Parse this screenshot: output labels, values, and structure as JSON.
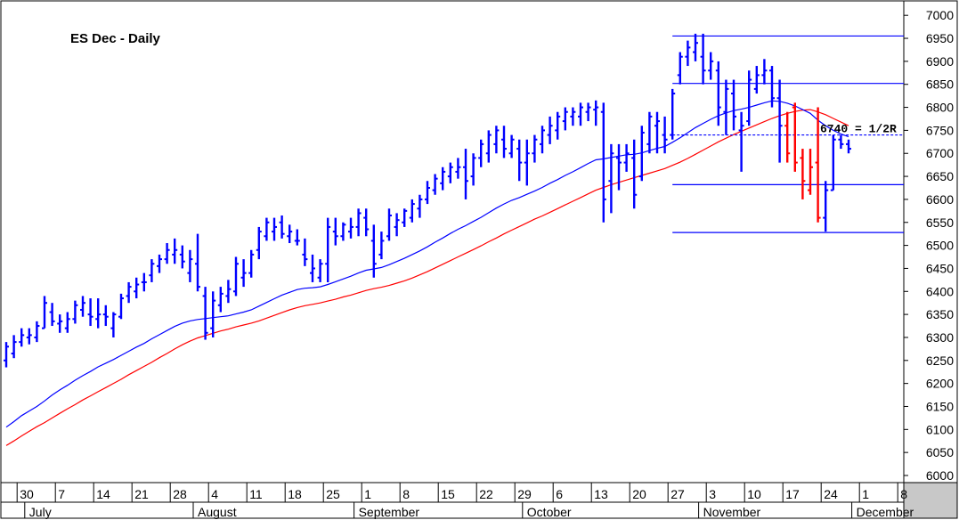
{
  "chart_data": {
    "type": "ohlc",
    "title": "ES Dec - Daily",
    "y_ticks": [
      6000,
      6050,
      6100,
      6150,
      6200,
      6250,
      6300,
      6350,
      6400,
      6450,
      6500,
      6550,
      6600,
      6650,
      6700,
      6750,
      6800,
      6850,
      6900,
      6950,
      7000
    ],
    "ylim": [
      5980,
      7030
    ],
    "date_ticks": [
      {
        "label": "30",
        "index": 2
      },
      {
        "label": "7",
        "index": 7
      },
      {
        "label": "14",
        "index": 12
      },
      {
        "label": "21",
        "index": 17
      },
      {
        "label": "28",
        "index": 22
      },
      {
        "label": "4",
        "index": 27
      },
      {
        "label": "11",
        "index": 32
      },
      {
        "label": "18",
        "index": 37
      },
      {
        "label": "25",
        "index": 42
      },
      {
        "label": "1",
        "index": 47
      },
      {
        "label": "8",
        "index": 52
      },
      {
        "label": "15",
        "index": 57
      },
      {
        "label": "22",
        "index": 62
      },
      {
        "label": "29",
        "index": 67
      },
      {
        "label": "6",
        "index": 72
      },
      {
        "label": "13",
        "index": 77
      },
      {
        "label": "20",
        "index": 82
      },
      {
        "label": "27",
        "index": 87
      },
      {
        "label": "3",
        "index": 92
      },
      {
        "label": "10",
        "index": 97
      },
      {
        "label": "17",
        "index": 102
      },
      {
        "label": "24",
        "index": 107
      },
      {
        "label": "1",
        "index": 112
      },
      {
        "label": "8",
        "index": 117
      }
    ],
    "month_ticks": [
      {
        "label": "July",
        "index": 3
      },
      {
        "label": "August",
        "index": 25
      },
      {
        "label": "September",
        "index": 46
      },
      {
        "label": "October",
        "index": 68
      },
      {
        "label": "November",
        "index": 91
      },
      {
        "label": "December",
        "index": 111
      }
    ],
    "horizontal_lines": [
      {
        "value": 6955,
        "style": "solid",
        "start_index": 87
      },
      {
        "value": 6852,
        "style": "solid",
        "start_index": 87
      },
      {
        "value": 6740,
        "style": "dashed",
        "start_index": 87
      },
      {
        "value": 6632,
        "style": "solid",
        "start_index": 87
      },
      {
        "value": 6528,
        "style": "solid",
        "start_index": 87
      }
    ],
    "annotation": {
      "text": "6740 = 1/2R",
      "value": 6740
    },
    "colors": {
      "up": "#0000ff",
      "down": "#ff0000",
      "ma_fast": "#0000ff",
      "ma_slow": "#ff0000",
      "levels": "#0000ff"
    },
    "bars": [
      [
        6250,
        6290,
        6235,
        6280
      ],
      [
        6265,
        6305,
        6255,
        6290
      ],
      [
        6290,
        6320,
        6280,
        6305
      ],
      [
        6300,
        6320,
        6285,
        6305
      ],
      [
        6300,
        6335,
        6290,
        6325
      ],
      [
        6320,
        6390,
        6320,
        6375
      ],
      [
        6355,
        6375,
        6325,
        6335
      ],
      [
        6330,
        6350,
        6310,
        6335
      ],
      [
        6320,
        6355,
        6310,
        6340
      ],
      [
        6340,
        6380,
        6330,
        6370
      ],
      [
        6360,
        6390,
        6345,
        6375
      ],
      [
        6350,
        6385,
        6325,
        6345
      ],
      [
        6340,
        6385,
        6320,
        6350
      ],
      [
        6350,
        6370,
        6325,
        6345
      ],
      [
        6320,
        6355,
        6300,
        6350
      ],
      [
        6345,
        6395,
        6340,
        6385
      ],
      [
        6390,
        6420,
        6375,
        6410
      ],
      [
        6400,
        6430,
        6385,
        6415
      ],
      [
        6420,
        6440,
        6400,
        6420
      ],
      [
        6435,
        6470,
        6420,
        6460
      ],
      [
        6455,
        6480,
        6440,
        6470
      ],
      [
        6470,
        6505,
        6460,
        6490
      ],
      [
        6480,
        6515,
        6460,
        6490
      ],
      [
        6480,
        6500,
        6450,
        6465
      ],
      [
        6440,
        6490,
        6420,
        6470
      ],
      [
        6460,
        6525,
        6400,
        6410
      ],
      [
        6390,
        6410,
        6295,
        6310
      ],
      [
        6320,
        6400,
        6300,
        6380
      ],
      [
        6370,
        6410,
        6355,
        6395
      ],
      [
        6390,
        6425,
        6375,
        6405
      ],
      [
        6400,
        6475,
        6390,
        6460
      ],
      [
        6430,
        6470,
        6410,
        6440
      ],
      [
        6440,
        6490,
        6430,
        6480
      ],
      [
        6490,
        6540,
        6470,
        6530
      ],
      [
        6520,
        6560,
        6510,
        6550
      ],
      [
        6530,
        6560,
        6510,
        6540
      ],
      [
        6550,
        6565,
        6515,
        6525
      ],
      [
        6520,
        6545,
        6505,
        6530
      ],
      [
        6510,
        6535,
        6500,
        6510
      ],
      [
        6480,
        6515,
        6455,
        6470
      ],
      [
        6440,
        6480,
        6420,
        6450
      ],
      [
        6430,
        6470,
        6420,
        6460
      ],
      [
        6460,
        6560,
        6420,
        6540
      ],
      [
        6530,
        6560,
        6500,
        6520
      ],
      [
        6520,
        6550,
        6510,
        6545
      ],
      [
        6530,
        6560,
        6515,
        6540
      ],
      [
        6540,
        6580,
        6520,
        6570
      ],
      [
        6560,
        6580,
        6520,
        6535
      ],
      [
        6510,
        6545,
        6430,
        6460
      ],
      [
        6480,
        6530,
        6470,
        6510
      ],
      [
        6520,
        6580,
        6510,
        6565
      ],
      [
        6540,
        6570,
        6520,
        6555
      ],
      [
        6550,
        6580,
        6540,
        6575
      ],
      [
        6560,
        6600,
        6550,
        6590
      ],
      [
        6580,
        6610,
        6560,
        6600
      ],
      [
        6600,
        6640,
        6590,
        6625
      ],
      [
        6620,
        6655,
        6610,
        6645
      ],
      [
        6635,
        6670,
        6620,
        6660
      ],
      [
        6650,
        6680,
        6635,
        6670
      ],
      [
        6660,
        6690,
        6645,
        6670
      ],
      [
        6670,
        6710,
        6600,
        6640
      ],
      [
        6650,
        6700,
        6630,
        6690
      ],
      [
        6690,
        6730,
        6670,
        6720
      ],
      [
        6700,
        6750,
        6680,
        6740
      ],
      [
        6720,
        6760,
        6700,
        6750
      ],
      [
        6730,
        6760,
        6690,
        6710
      ],
      [
        6700,
        6740,
        6690,
        6730
      ],
      [
        6710,
        6730,
        6640,
        6680
      ],
      [
        6680,
        6730,
        6630,
        6700
      ],
      [
        6700,
        6740,
        6680,
        6730
      ],
      [
        6720,
        6760,
        6700,
        6750
      ],
      [
        6740,
        6780,
        6720,
        6760
      ],
      [
        6750,
        6790,
        6730,
        6780
      ],
      [
        6770,
        6800,
        6750,
        6790
      ],
      [
        6780,
        6800,
        6760,
        6790
      ],
      [
        6780,
        6810,
        6760,
        6800
      ],
      [
        6790,
        6810,
        6770,
        6800
      ],
      [
        6795,
        6815,
        6760,
        6800
      ],
      [
        6790,
        6810,
        6550,
        6600
      ],
      [
        6640,
        6720,
        6570,
        6700
      ],
      [
        6690,
        6720,
        6620,
        6680
      ],
      [
        6680,
        6720,
        6660,
        6700
      ],
      [
        6690,
        6730,
        6580,
        6610
      ],
      [
        6650,
        6760,
        6640,
        6745
      ],
      [
        6720,
        6790,
        6700,
        6780
      ],
      [
        6760,
        6790,
        6700,
        6770
      ],
      [
        6740,
        6780,
        6700,
        6730
      ],
      [
        6740,
        6840,
        6730,
        6830
      ],
      [
        6870,
        6920,
        6850,
        6910
      ],
      [
        6910,
        6945,
        6890,
        6930
      ],
      [
        6920,
        6960,
        6900,
        6940
      ],
      [
        6910,
        6960,
        6850,
        6880
      ],
      [
        6880,
        6920,
        6860,
        6900
      ],
      [
        6880,
        6900,
        6760,
        6800
      ],
      [
        6790,
        6860,
        6740,
        6840
      ],
      [
        6830,
        6860,
        6750,
        6780
      ],
      [
        6750,
        6790,
        6660,
        6760
      ],
      [
        6770,
        6880,
        6760,
        6860
      ],
      [
        6840,
        6890,
        6830,
        6870
      ],
      [
        6870,
        6905,
        6850,
        6880
      ],
      [
        6880,
        6890,
        6800,
        6820
      ],
      [
        6820,
        6860,
        6680,
        6760
      ],
      [
        6760,
        6790,
        6680,
        6700
      ],
      [
        6800,
        6810,
        6660,
        6680
      ],
      [
        6690,
        6710,
        6600,
        6640
      ],
      [
        6620,
        6710,
        6610,
        6670
      ],
      [
        6680,
        6800,
        6550,
        6560
      ],
      [
        6560,
        6640,
        6530,
        6620
      ],
      [
        6620,
        6740,
        6620,
        6730
      ],
      [
        6730,
        6740,
        6710,
        6720
      ],
      [
        6720,
        6730,
        6700,
        6710
      ]
    ],
    "ma_fast": [
      6105,
      6117,
      6130,
      6140,
      6150,
      6162,
      6175,
      6186,
      6196,
      6207,
      6217,
      6226,
      6236,
      6244,
      6252,
      6261,
      6270,
      6279,
      6287,
      6297,
      6306,
      6315,
      6324,
      6331,
      6336,
      6339,
      6341,
      6343,
      6345,
      6347,
      6351,
      6355,
      6360,
      6368,
      6376,
      6384,
      6392,
      6398,
      6404,
      6407,
      6408,
      6410,
      6415,
      6421,
      6427,
      6433,
      6440,
      6446,
      6449,
      6452,
      6458,
      6465,
      6472,
      6480,
      6488,
      6497,
      6507,
      6516,
      6526,
      6535,
      6543,
      6552,
      6561,
      6571,
      6581,
      6590,
      6598,
      6604,
      6611,
      6618,
      6626,
      6635,
      6643,
      6652,
      6660,
      6669,
      6678,
      6686,
      6688,
      6691,
      6694,
      6697,
      6698,
      6701,
      6706,
      6711,
      6715,
      6724,
      6734,
      6745,
      6756,
      6765,
      6774,
      6782,
      6788,
      6793,
      6796,
      6800,
      6805,
      6810,
      6814,
      6813,
      6809,
      6803,
      6795,
      6787,
      6772,
      6760,
      6750,
      6742,
      6736
    ],
    "ma_slow": [
      6065,
      6075,
      6086,
      6096,
      6106,
      6115,
      6125,
      6135,
      6145,
      6154,
      6164,
      6173,
      6182,
      6191,
      6200,
      6209,
      6219,
      6228,
      6237,
      6246,
      6256,
      6265,
      6275,
      6284,
      6292,
      6299,
      6304,
      6309,
      6314,
      6318,
      6323,
      6327,
      6331,
      6336,
      6342,
      6348,
      6354,
      6360,
      6365,
      6369,
      6372,
      6375,
      6379,
      6383,
      6388,
      6392,
      6397,
      6402,
      6406,
      6409,
      6413,
      6418,
      6423,
      6429,
      6436,
      6443,
      6451,
      6459,
      6467,
      6475,
      6483,
      6491,
      6499,
      6508,
      6516,
      6525,
      6533,
      6541,
      6549,
      6557,
      6564,
      6572,
      6580,
      6588,
      6596,
      6604,
      6612,
      6620,
      6626,
      6632,
      6637,
      6642,
      6647,
      6652,
      6657,
      6662,
      6667,
      6674,
      6681,
      6689,
      6698,
      6707,
      6716,
      6725,
      6733,
      6741,
      6748,
      6755,
      6762,
      6769,
      6776,
      6782,
      6787,
      6791,
      6794,
      6795,
      6790,
      6784,
      6776,
      6768,
      6760
    ]
  }
}
